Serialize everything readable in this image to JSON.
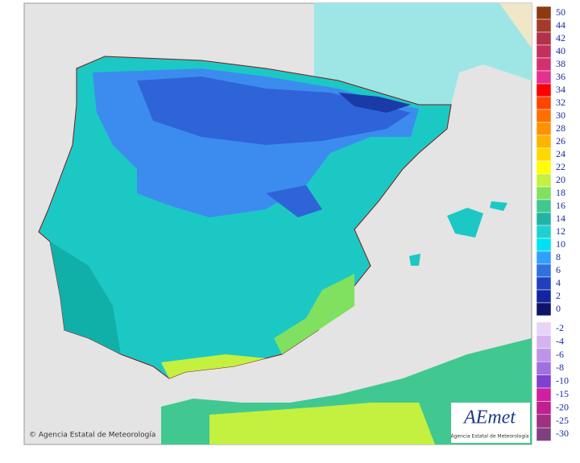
{
  "credit": "© Agencia Estatal de Meteorología",
  "logo": {
    "name": "AEmet",
    "subtitle": "Agencia Estatal de Meteorología"
  },
  "legend": {
    "items": [
      {
        "value": 50,
        "color": "#8b3a10"
      },
      {
        "value": 44,
        "color": "#a33a2a"
      },
      {
        "value": 42,
        "color": "#b3304a"
      },
      {
        "value": 40,
        "color": "#c3305c"
      },
      {
        "value": 38,
        "color": "#d33072"
      },
      {
        "value": 36,
        "color": "#e4308e"
      },
      {
        "value": 34,
        "color": "#ff0000"
      },
      {
        "value": 32,
        "color": "#ff4400"
      },
      {
        "value": 30,
        "color": "#ff7000"
      },
      {
        "value": 28,
        "color": "#ff9200"
      },
      {
        "value": 26,
        "color": "#ffb400"
      },
      {
        "value": 24,
        "color": "#ffd800"
      },
      {
        "value": 22,
        "color": "#ffff00"
      },
      {
        "value": 20,
        "color": "#c4f040"
      },
      {
        "value": 18,
        "color": "#80e060"
      },
      {
        "value": 16,
        "color": "#40c890"
      },
      {
        "value": 14,
        "color": "#20b4a4"
      },
      {
        "value": 12,
        "color": "#20d0d0"
      },
      {
        "value": 10,
        "color": "#00e2f2"
      },
      {
        "value": 8,
        "color": "#30a0ff"
      },
      {
        "value": 6,
        "color": "#3070e0"
      },
      {
        "value": 4,
        "color": "#2040c0"
      },
      {
        "value": 2,
        "color": "#1424a0"
      },
      {
        "value": 0,
        "color": "#101468"
      },
      {
        "value": -2,
        "color": "#e8d4f8"
      },
      {
        "value": -4,
        "color": "#d4b4f0"
      },
      {
        "value": -6,
        "color": "#bc94e8"
      },
      {
        "value": -8,
        "color": "#a070e0"
      },
      {
        "value": -10,
        "color": "#8040d0"
      },
      {
        "value": -15,
        "color": "#d020a0"
      },
      {
        "value": -20,
        "color": "#c02090"
      },
      {
        "value": -25,
        "color": "#a03080"
      },
      {
        "value": -30,
        "color": "#804080"
      }
    ]
  }
}
